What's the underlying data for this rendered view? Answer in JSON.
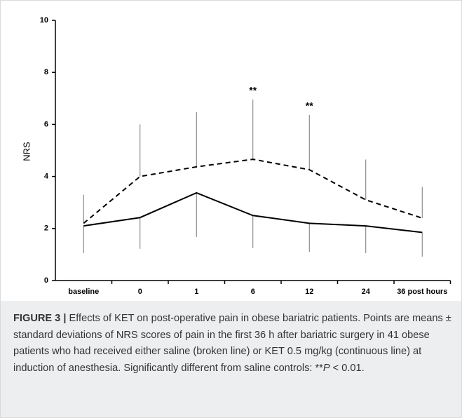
{
  "chart_data": {
    "type": "line",
    "ylabel": "NRS",
    "categories": [
      "baseline",
      "0",
      "1",
      "6",
      "12",
      "24",
      "36 post hours"
    ],
    "ylim": [
      0,
      10
    ],
    "yticks": [
      0,
      2,
      4,
      6,
      8,
      10
    ],
    "series": [
      {
        "style": "dashed",
        "color": "#000000",
        "error_direction": "up",
        "values": [
          2.2,
          4.0,
          4.37,
          4.66,
          4.26,
          3.1,
          2.4
        ],
        "errors": [
          1.1,
          2.0,
          2.1,
          2.3,
          2.1,
          1.55,
          1.2
        ]
      },
      {
        "style": "solid",
        "color": "#000000",
        "error_direction": "down",
        "values": [
          2.1,
          2.42,
          3.37,
          2.5,
          2.2,
          2.1,
          1.85
        ],
        "errors": [
          1.05,
          1.2,
          1.7,
          1.25,
          1.1,
          1.05,
          0.93
        ]
      }
    ],
    "annotations": [
      {
        "text": "**",
        "category": "6"
      },
      {
        "text": "**",
        "category": "12"
      }
    ]
  },
  "caption": {
    "label": "FIGURE 3 |",
    "text": " Effects of KET on post-operative pain in obese bariatric patients. Points are means ± standard deviations of NRS scores of pain in the first 36 h after bariatric surgery in 41 obese patients who had received either saline (broken line) or KET 0.5 mg/kg (continuous line) at induction of anesthesia. Significantly different from saline controls: **",
    "italic": "P",
    "end": " < 0.01."
  }
}
